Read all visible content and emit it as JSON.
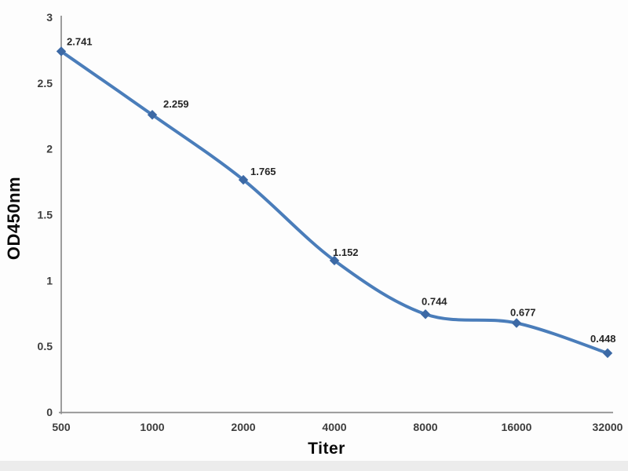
{
  "chart_data": {
    "type": "line",
    "title": "",
    "xlabel": "Titer",
    "ylabel": "OD450nm",
    "categories": [
      "500",
      "1000",
      "2000",
      "4000",
      "8000",
      "16000",
      "32000"
    ],
    "values": [
      2.741,
      2.259,
      1.765,
      1.152,
      0.744,
      0.677,
      0.448
    ],
    "point_labels": [
      "2.741",
      "2.259",
      "1.765",
      "1.152",
      "0.744",
      "0.677",
      "0.448"
    ],
    "ylim": [
      0,
      3
    ],
    "ytick_labels": [
      "0",
      "0.5",
      "1",
      "1.5",
      "2",
      "2.5",
      "3"
    ],
    "grid": false,
    "legend": "none",
    "line_style": "smooth",
    "marker": "diamond",
    "colors": {
      "line": "#4a7dba",
      "marker": "#3c69a5",
      "axis": "#8c8c8c",
      "tick_label": "#3d3d3d",
      "data_label": "#262626",
      "axis_title": "#0a0a0a",
      "background": "#fdfdfd"
    }
  }
}
